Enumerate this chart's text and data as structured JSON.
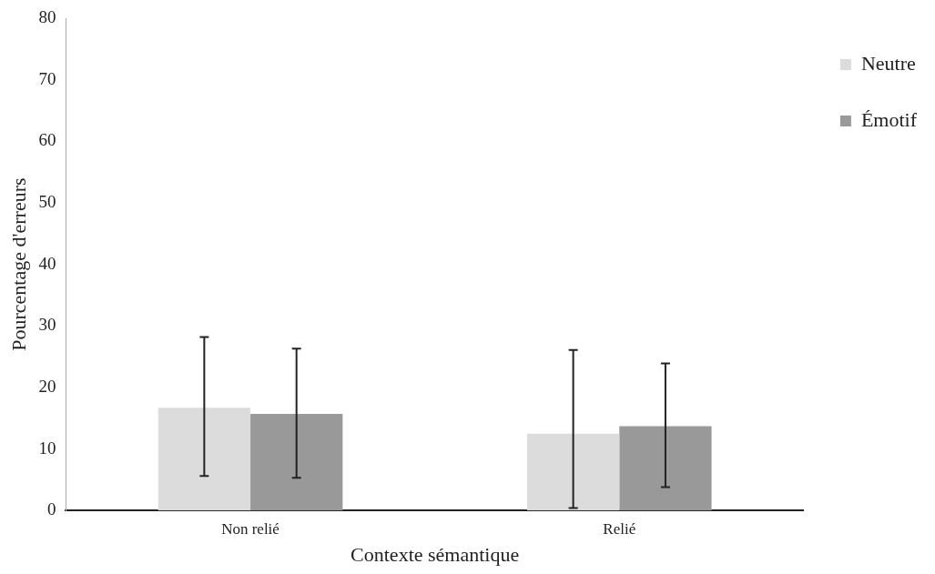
{
  "chart_data": {
    "type": "bar",
    "xlabel": "Contexte sémantique",
    "ylabel": "Pourcentage d'erreurs",
    "categories": [
      "Non relié",
      "Relié"
    ],
    "series": [
      {
        "name": "Neutre",
        "color": "#dcdcdc",
        "values": [
          16.7,
          12.5
        ],
        "errors": [
          [
            5.6,
            28.2
          ],
          [
            0.4,
            26.1
          ]
        ]
      },
      {
        "name": "Émotif",
        "color": "#999999",
        "values": [
          15.7,
          13.7
        ],
        "errors": [
          [
            5.3,
            26.3
          ],
          [
            3.8,
            23.9
          ]
        ]
      }
    ],
    "ylim": [
      0,
      80
    ],
    "yticks": [
      0,
      10,
      20,
      30,
      40,
      50,
      60,
      70,
      80
    ],
    "grid": false,
    "legend": "top right"
  }
}
